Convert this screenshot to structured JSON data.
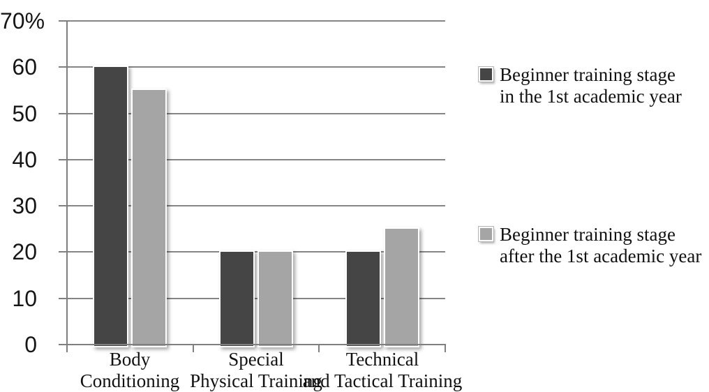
{
  "chart_data": {
    "type": "bar",
    "title": "",
    "categories": [
      "Body Conditioning",
      "Special Physical Training",
      "Technical and Tactical Training"
    ],
    "category_label_lines": [
      [
        "Body",
        "Conditioning"
      ],
      [
        "Special",
        "Physical Training"
      ],
      [
        "Technical",
        "and Tactical Training"
      ]
    ],
    "series": [
      {
        "name": "Beginner training stage in the 1st academic year",
        "label_lines": [
          "Beginner training stage",
          "in the 1st academic year"
        ],
        "color": "#454545",
        "values": [
          60,
          20,
          20
        ]
      },
      {
        "name": "Beginner training stage after the 1st academic year",
        "label_lines": [
          "Beginner training stage",
          "after the 1st academic year"
        ],
        "color": "#a5a5a5",
        "values": [
          55,
          20,
          25
        ]
      }
    ],
    "y_axis": {
      "min": 0,
      "max": 70,
      "tick_step": 10,
      "tick_labels": [
        "0",
        "10",
        "20",
        "30",
        "40",
        "50",
        "60",
        "70%"
      ]
    },
    "grid": true,
    "legend_position": "right",
    "colors": {
      "axis": "#7f7f7f",
      "gridline": "#858585",
      "bar_border": "#ffffff",
      "text": "#111111"
    }
  }
}
